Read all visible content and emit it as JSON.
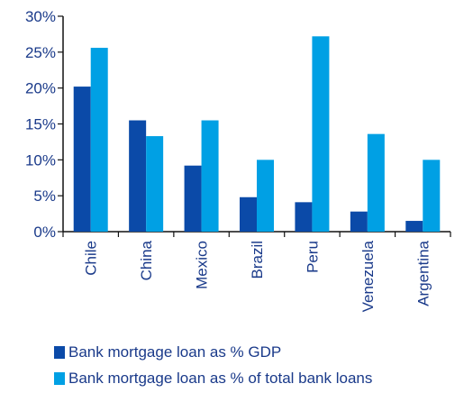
{
  "chart_data": {
    "type": "bar",
    "categories": [
      "Chile",
      "China",
      "Mexico",
      "Brazil",
      "Peru",
      "Venezuela",
      "Argentina"
    ],
    "series": [
      {
        "name": "Bank mortgage loan as % GDP",
        "values": [
          20.2,
          15.5,
          9.2,
          4.8,
          4.1,
          2.8,
          1.5
        ],
        "color": "#0b4aa8"
      },
      {
        "name": "Bank mortgage loan as % of total bank loans",
        "values": [
          25.6,
          13.3,
          15.5,
          10.0,
          27.2,
          13.6,
          10.0
        ],
        "color": "#00a0e4"
      }
    ],
    "yticks": [
      "0%",
      "5%",
      "10%",
      "15%",
      "20%",
      "25%",
      "30%"
    ],
    "ylim": [
      0,
      30
    ],
    "title": "",
    "xlabel": "",
    "ylabel": "",
    "grid": false,
    "legend_position": "bottom"
  }
}
